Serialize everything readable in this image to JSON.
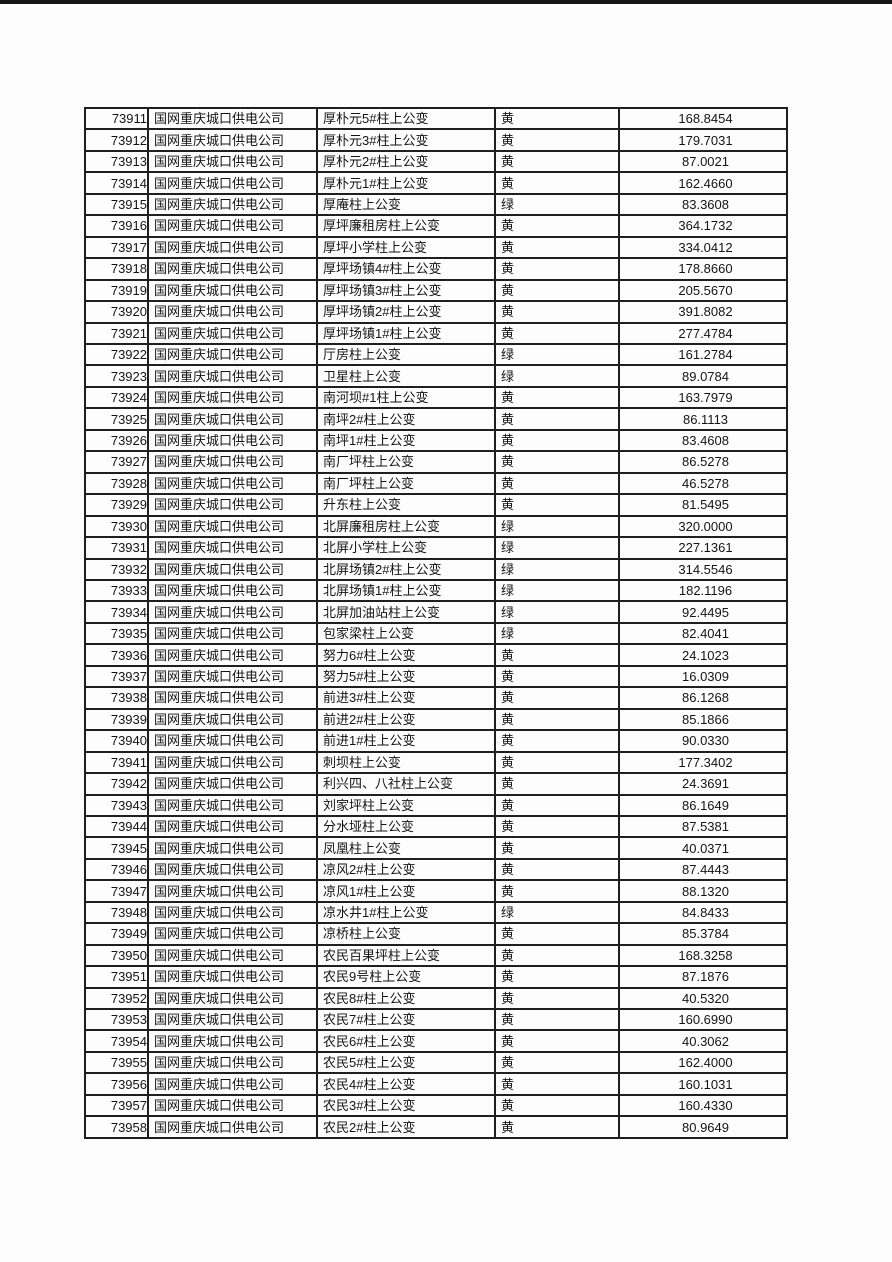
{
  "page": {
    "top_bar_color": "#161616",
    "background_color": "#fdfdfd",
    "border_color": "#1f1f1f",
    "text_color": "#141414"
  },
  "table": {
    "rows": [
      {
        "id": "73911",
        "company": "国网重庆城口供电公司",
        "name": "厚朴元5#柱上公变",
        "status": "黄",
        "value": "168.8454"
      },
      {
        "id": "73912",
        "company": "国网重庆城口供电公司",
        "name": "厚朴元3#柱上公变",
        "status": "黄",
        "value": "179.7031"
      },
      {
        "id": "73913",
        "company": "国网重庆城口供电公司",
        "name": "厚朴元2#柱上公变",
        "status": "黄",
        "value": "87.0021"
      },
      {
        "id": "73914",
        "company": "国网重庆城口供电公司",
        "name": "厚朴元1#柱上公变",
        "status": "黄",
        "value": "162.4660"
      },
      {
        "id": "73915",
        "company": "国网重庆城口供电公司",
        "name": "厚庵柱上公变",
        "status": "绿",
        "value": "83.3608"
      },
      {
        "id": "73916",
        "company": "国网重庆城口供电公司",
        "name": "厚坪廉租房柱上公变",
        "status": "黄",
        "value": "364.1732"
      },
      {
        "id": "73917",
        "company": "国网重庆城口供电公司",
        "name": "厚坪小学柱上公变",
        "status": "黄",
        "value": "334.0412"
      },
      {
        "id": "73918",
        "company": "国网重庆城口供电公司",
        "name": "厚坪场镇4#柱上公变",
        "status": "黄",
        "value": "178.8660"
      },
      {
        "id": "73919",
        "company": "国网重庆城口供电公司",
        "name": "厚坪场镇3#柱上公变",
        "status": "黄",
        "value": "205.5670"
      },
      {
        "id": "73920",
        "company": "国网重庆城口供电公司",
        "name": "厚坪场镇2#柱上公变",
        "status": "黄",
        "value": "391.8082"
      },
      {
        "id": "73921",
        "company": "国网重庆城口供电公司",
        "name": "厚坪场镇1#柱上公变",
        "status": "黄",
        "value": "277.4784"
      },
      {
        "id": "73922",
        "company": "国网重庆城口供电公司",
        "name": "厅房柱上公变",
        "status": "绿",
        "value": "161.2784"
      },
      {
        "id": "73923",
        "company": "国网重庆城口供电公司",
        "name": "卫星柱上公变",
        "status": "绿",
        "value": "89.0784"
      },
      {
        "id": "73924",
        "company": "国网重庆城口供电公司",
        "name": "南河坝#1柱上公变",
        "status": "黄",
        "value": "163.7979"
      },
      {
        "id": "73925",
        "company": "国网重庆城口供电公司",
        "name": "南坪2#柱上公变",
        "status": "黄",
        "value": "86.1113"
      },
      {
        "id": "73926",
        "company": "国网重庆城口供电公司",
        "name": "南坪1#柱上公变",
        "status": "黄",
        "value": "83.4608"
      },
      {
        "id": "73927",
        "company": "国网重庆城口供电公司",
        "name": "南厂坪柱上公变",
        "status": "黄",
        "value": "86.5278"
      },
      {
        "id": "73928",
        "company": "国网重庆城口供电公司",
        "name": "南厂坪柱上公变",
        "status": "黄",
        "value": "46.5278"
      },
      {
        "id": "73929",
        "company": "国网重庆城口供电公司",
        "name": "升东柱上公变",
        "status": "黄",
        "value": "81.5495"
      },
      {
        "id": "73930",
        "company": "国网重庆城口供电公司",
        "name": "北屏廉租房柱上公变",
        "status": "绿",
        "value": "320.0000"
      },
      {
        "id": "73931",
        "company": "国网重庆城口供电公司",
        "name": "北屏小学柱上公变",
        "status": "绿",
        "value": "227.1361"
      },
      {
        "id": "73932",
        "company": "国网重庆城口供电公司",
        "name": "北屏场镇2#柱上公变",
        "status": "绿",
        "value": "314.5546"
      },
      {
        "id": "73933",
        "company": "国网重庆城口供电公司",
        "name": "北屏场镇1#柱上公变",
        "status": "绿",
        "value": "182.1196"
      },
      {
        "id": "73934",
        "company": "国网重庆城口供电公司",
        "name": "北屏加油站柱上公变",
        "status": "绿",
        "value": "92.4495"
      },
      {
        "id": "73935",
        "company": "国网重庆城口供电公司",
        "name": "包家梁柱上公变",
        "status": "绿",
        "value": "82.4041"
      },
      {
        "id": "73936",
        "company": "国网重庆城口供电公司",
        "name": "努力6#柱上公变",
        "status": "黄",
        "value": "24.1023"
      },
      {
        "id": "73937",
        "company": "国网重庆城口供电公司",
        "name": "努力5#柱上公变",
        "status": "黄",
        "value": "16.0309"
      },
      {
        "id": "73938",
        "company": "国网重庆城口供电公司",
        "name": "前进3#柱上公变",
        "status": "黄",
        "value": "86.1268"
      },
      {
        "id": "73939",
        "company": "国网重庆城口供电公司",
        "name": "前进2#柱上公变",
        "status": "黄",
        "value": "85.1866"
      },
      {
        "id": "73940",
        "company": "国网重庆城口供电公司",
        "name": "前进1#柱上公变",
        "status": "黄",
        "value": "90.0330"
      },
      {
        "id": "73941",
        "company": "国网重庆城口供电公司",
        "name": "刺坝柱上公变",
        "status": "黄",
        "value": "177.3402"
      },
      {
        "id": "73942",
        "company": "国网重庆城口供电公司",
        "name": "利兴四、八社柱上公变",
        "status": "黄",
        "value": "24.3691"
      },
      {
        "id": "73943",
        "company": "国网重庆城口供电公司",
        "name": "刘家坪柱上公变",
        "status": "黄",
        "value": "86.1649"
      },
      {
        "id": "73944",
        "company": "国网重庆城口供电公司",
        "name": "分水垭柱上公变",
        "status": "黄",
        "value": "87.5381"
      },
      {
        "id": "73945",
        "company": "国网重庆城口供电公司",
        "name": "凤凰柱上公变",
        "status": "黄",
        "value": "40.0371"
      },
      {
        "id": "73946",
        "company": "国网重庆城口供电公司",
        "name": "凉风2#柱上公变",
        "status": "黄",
        "value": "87.4443"
      },
      {
        "id": "73947",
        "company": "国网重庆城口供电公司",
        "name": "凉风1#柱上公变",
        "status": "黄",
        "value": "88.1320"
      },
      {
        "id": "73948",
        "company": "国网重庆城口供电公司",
        "name": "凉水井1#柱上公变",
        "status": "绿",
        "value": "84.8433"
      },
      {
        "id": "73949",
        "company": "国网重庆城口供电公司",
        "name": "凉桥柱上公变",
        "status": "黄",
        "value": "85.3784"
      },
      {
        "id": "73950",
        "company": "国网重庆城口供电公司",
        "name": "农民百果坪柱上公变",
        "status": "黄",
        "value": "168.3258"
      },
      {
        "id": "73951",
        "company": "国网重庆城口供电公司",
        "name": "农民9号柱上公变",
        "status": "黄",
        "value": "87.1876"
      },
      {
        "id": "73952",
        "company": "国网重庆城口供电公司",
        "name": "农民8#柱上公变",
        "status": "黄",
        "value": "40.5320"
      },
      {
        "id": "73953",
        "company": "国网重庆城口供电公司",
        "name": "农民7#柱上公变",
        "status": "黄",
        "value": "160.6990"
      },
      {
        "id": "73954",
        "company": "国网重庆城口供电公司",
        "name": "农民6#柱上公变",
        "status": "黄",
        "value": "40.3062"
      },
      {
        "id": "73955",
        "company": "国网重庆城口供电公司",
        "name": "农民5#柱上公变",
        "status": "黄",
        "value": "162.4000"
      },
      {
        "id": "73956",
        "company": "国网重庆城口供电公司",
        "name": "农民4#柱上公变",
        "status": "黄",
        "value": "160.1031"
      },
      {
        "id": "73957",
        "company": "国网重庆城口供电公司",
        "name": "农民3#柱上公变",
        "status": "黄",
        "value": "160.4330"
      },
      {
        "id": "73958",
        "company": "国网重庆城口供电公司",
        "name": "农民2#柱上公变",
        "status": "黄",
        "value": "80.9649"
      }
    ]
  }
}
